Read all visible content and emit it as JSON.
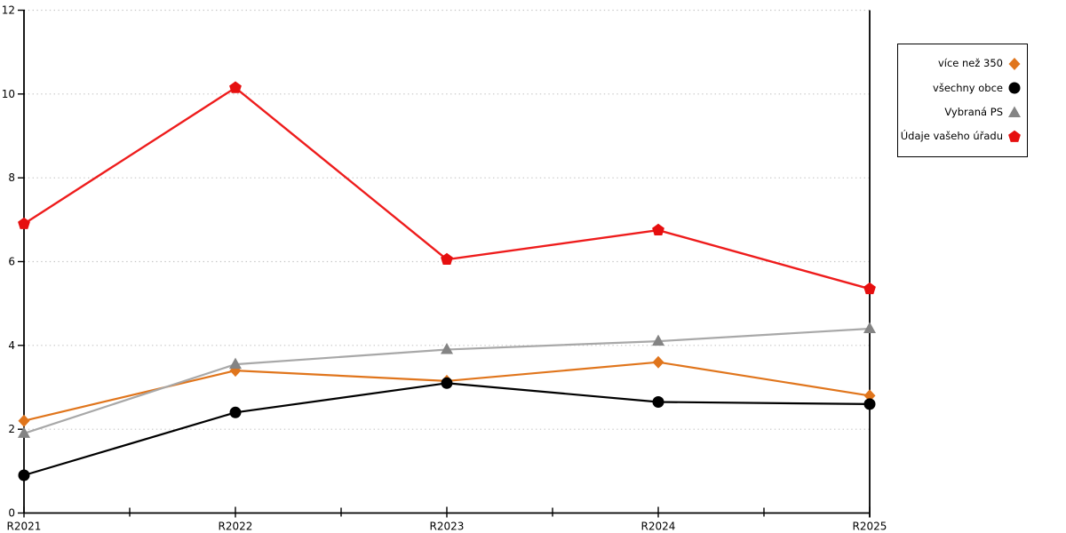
{
  "chart_data": {
    "type": "line",
    "title": "",
    "xlabel": "",
    "ylabel": "",
    "categories": [
      "R2021",
      "R2022",
      "R2023",
      "R2024",
      "R2025"
    ],
    "ylim": [
      0,
      12
    ],
    "yticks": [
      0,
      2,
      4,
      6,
      8,
      10,
      12
    ],
    "grid": "horizontal dotted lines at y ticks",
    "grid_color": "#c6c6c6",
    "axis_color": "#000000",
    "legend_position": "outside-right",
    "minor_x_ticks_between_categories": true,
    "series": [
      {
        "name": "více než 350",
        "marker": "diamond",
        "color": "#e0751c",
        "values": [
          2.2,
          3.4,
          3.15,
          3.6,
          2.8
        ]
      },
      {
        "name": "všechny obce",
        "marker": "circle",
        "color": "#000000",
        "values": [
          0.9,
          2.4,
          3.1,
          2.65,
          2.6
        ]
      },
      {
        "name": "Vybraná PS",
        "marker": "triangle",
        "color": "#a8a8a8",
        "marker_color": "#848484",
        "values": [
          1.9,
          3.55,
          3.9,
          4.1,
          4.4
        ]
      },
      {
        "name": "Údaje vašeho úřadu",
        "marker": "pentagon",
        "color": "#ee1c1c",
        "marker_color": "#e60f0f",
        "values": [
          6.9,
          10.15,
          6.05,
          6.75,
          5.35
        ]
      }
    ]
  }
}
